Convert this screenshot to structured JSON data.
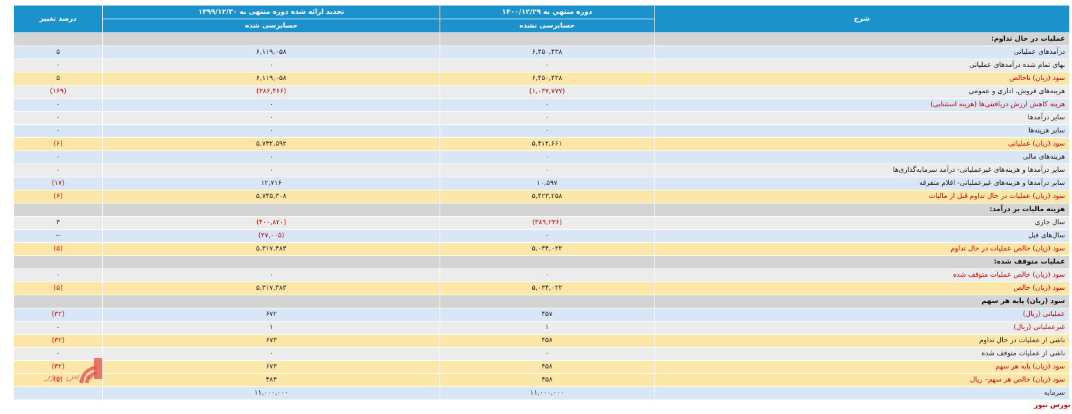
{
  "header": {
    "col_desc": "شرح",
    "col_current": "دوره منتهي به ۱۴۰۰/۱۲/۲۹",
    "col_prior": "تجدید ارائه شده دوره منتهی به ۱۳۹۹/۱۲/۳۰",
    "col_change": "درصد تغییر",
    "current_audit": "حسابرسی نشده",
    "prior_audit": "حسابرسی شده"
  },
  "rows": [
    {
      "type": "section",
      "desc": "عملیات در حال تداوم:",
      "cur": "",
      "prev": "",
      "chg": ""
    },
    {
      "type": "blue",
      "desc": "درآمدهای عملیاتی",
      "cur": "۶,۴۵۰,۴۳۸",
      "prev": "۶,۱۱۹,۰۵۸",
      "chg": "۵"
    },
    {
      "type": "gray",
      "desc": "بهای تمام شده درآمدهای عملیاتی",
      "cur": "۰",
      "prev": "۰",
      "chg": "۰"
    },
    {
      "type": "gold",
      "desc": "سود (زیان) ناخالص",
      "cur": "۶,۴۵۰,۴۳۸",
      "prev": "۶,۱۱۹,۰۵۸",
      "chg": "۵"
    },
    {
      "type": "gray",
      "desc": "هزینه‌های فروش، اداری و عمومی",
      "cur": "(۱,۰۳۷,۷۷۷)",
      "prev": "(۳۸۶,۴۶۶)",
      "chg": "(۱۶۹)",
      "neg": true
    },
    {
      "type": "blue",
      "desc": "هزینه کاهش ارزش دریافتنی‌ها (هزینه استثنایی)",
      "cur": "۰",
      "prev": "۰",
      "chg": "۰"
    },
    {
      "type": "gray",
      "desc": "سایر درآمدها",
      "cur": "۰",
      "prev": "۰",
      "chg": "۰"
    },
    {
      "type": "blue",
      "desc": "سایر هزینه‌ها",
      "cur": "۰",
      "prev": "۰",
      "chg": "۰"
    },
    {
      "type": "gold",
      "desc": "سود (زیان) عملیاتی",
      "cur": "۵,۴۱۲,۶۶۱",
      "prev": "۵,۷۳۲,۵۹۲",
      "chg": "(۶)",
      "negchg": true
    },
    {
      "type": "blue",
      "desc": "هزینه‌های مالی",
      "cur": "۰",
      "prev": "۰",
      "chg": "۰"
    },
    {
      "type": "gray",
      "desc": "سایر درآمدها و هزینه‌های غیرعملیاتی- درآمد سرمایه‌گذاری‌ها",
      "cur": "۰",
      "prev": "۰",
      "chg": "۰"
    },
    {
      "type": "blue",
      "desc": "سایر درآمدها و هزینه‌های غیرعملیاتی- اقلام متفرقه",
      "cur": "۱۰,۵۹۷",
      "prev": "۱۲,۷۱۶",
      "chg": "(۱۷)",
      "negchg": true
    },
    {
      "type": "gold",
      "desc": "سود (زیان) عملیات در حال تداوم قبل از مالیات",
      "cur": "۵,۴۲۳,۲۵۸",
      "prev": "۵,۷۴۵,۳۰۸",
      "chg": "(۶)",
      "negchg": true
    },
    {
      "type": "section",
      "desc": "هزینه مالیات بر درآمد:",
      "cur": "",
      "prev": "",
      "chg": ""
    },
    {
      "type": "gray",
      "desc": "سال جاری",
      "cur": "(۳۸۹,۲۳۶)",
      "prev": "(۴۰۰,۸۲۰)",
      "chg": "۳",
      "negvals": true
    },
    {
      "type": "blue",
      "desc": "سال‌های قبل",
      "cur": "۰",
      "prev": "(۲۷,۰۰۵)",
      "chg": "--",
      "negprev": true
    },
    {
      "type": "gold",
      "desc": "سود (زیان) خالص عملیات در حال تداوم",
      "cur": "۵,۰۳۴,۰۲۲",
      "prev": "۵,۳۱۷,۴۸۳",
      "chg": "(۵)",
      "negchg": true
    },
    {
      "type": "section",
      "desc": "عملیات متوقف شده:",
      "cur": "",
      "prev": "",
      "chg": ""
    },
    {
      "type": "gray",
      "desc": "سود (زیان) خالص عملیات متوقف شده",
      "cur": "۰",
      "prev": "۰",
      "chg": "۰"
    },
    {
      "type": "gold",
      "desc": "سود (زیان) خالص",
      "cur": "۵,۰۳۴,۰۲۲",
      "prev": "۵,۳۱۷,۴۸۳",
      "chg": "(۵)",
      "negchg": true
    },
    {
      "type": "section",
      "desc": "سود (زیان) پایه هر سهم",
      "cur": "",
      "prev": "",
      "chg": ""
    },
    {
      "type": "blue",
      "desc": "عملیاتی (ریال)",
      "cur": "۴۵۷",
      "prev": "۶۷۲",
      "chg": "(۳۲)",
      "negchg": true
    },
    {
      "type": "gray",
      "desc": "غیرعملیاتی (ریال)",
      "cur": "۱",
      "prev": "۱",
      "chg": "۰"
    },
    {
      "type": "gold",
      "desc": "ناشی از عملیات در حال تداوم",
      "cur": "۴۵۸",
      "prev": "۶۷۳",
      "chg": "(۳۲)",
      "negchg": true
    },
    {
      "type": "gray",
      "desc": "ناشی از عملیات متوقف شده",
      "cur": "۰",
      "prev": "۰",
      "chg": "۰"
    },
    {
      "type": "gold",
      "desc": "سود (زیان) پایه هر سهم",
      "cur": "۴۵۸",
      "prev": "۶۷۳",
      "chg": "(۳۲)",
      "negchg": true
    },
    {
      "type": "gold",
      "desc": "سود (زیان) خالص هر سهم– ریال",
      "cur": "۴۵۸",
      "prev": "۴۸۳",
      "chg": "(۵)",
      "negchg": true
    },
    {
      "type": "blue",
      "desc": "سرمایه",
      "cur": "۱۱,۰۰۰,۰۰۰",
      "prev": "۱۱,۰۰۰,۰۰۰",
      "chg": ""
    }
  ],
  "watermark_text": "بورس نیوز",
  "brand_text": "بورس نیوز",
  "colors": {
    "header": "#1c92cd",
    "negative": "#d00000",
    "blue_row": "#d8e6f5",
    "gray_row": "#ececec",
    "gold_row": "#fce6a8",
    "section_row": "#d4d4d4",
    "logo": "#e05050"
  }
}
